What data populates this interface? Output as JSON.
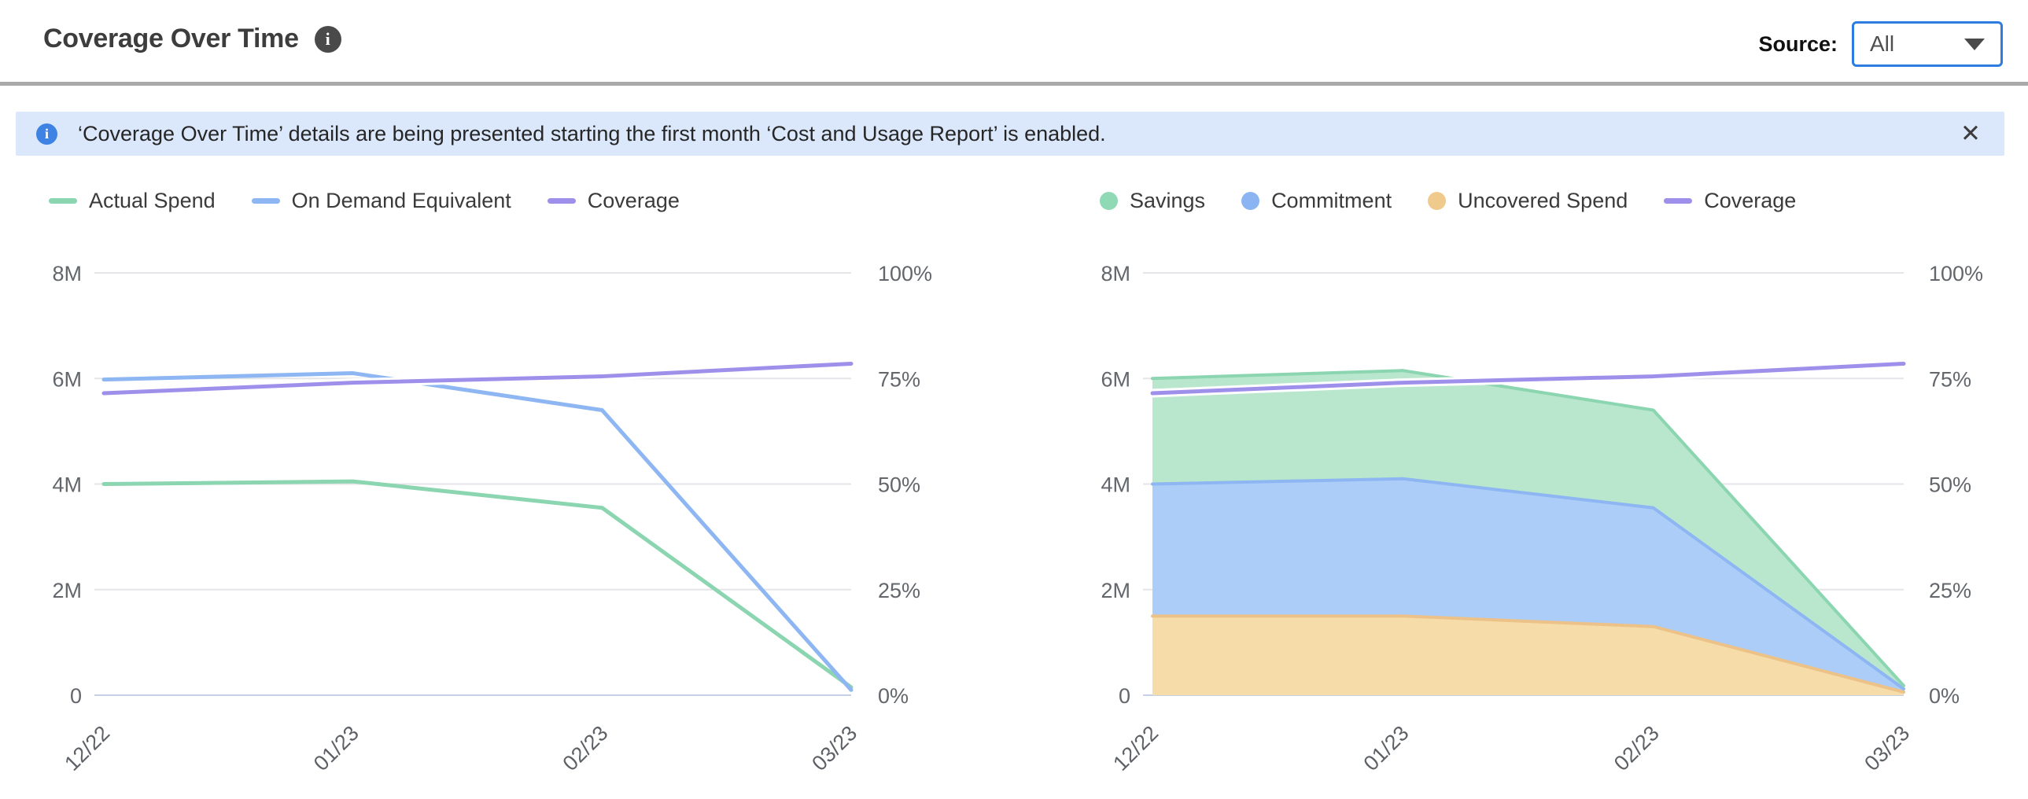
{
  "header": {
    "title": "Coverage Over Time",
    "info_icon": "i",
    "source_label": "Source:",
    "source_value": "All"
  },
  "banner": {
    "icon": "i",
    "text": "‘Coverage Over Time’ details are being presented starting the first month ‘Cost and Usage Report’ is enabled.",
    "close_glyph": "✕"
  },
  "colors": {
    "green_line": "#8bd5b0",
    "green_fill": "#b9e7cd",
    "blue_line": "#8db6f2",
    "blue_fill": "#abcdf8",
    "orange_line": "#edc289",
    "orange_fill": "#f5dca9",
    "purple_line": "#9e90ea",
    "halo": "#ffffff",
    "grid": "#e4e5e8",
    "zero_line": "#c5d0e9",
    "axis_text": "#63666b",
    "month_text": "#5d6065"
  },
  "chart_data": [
    {
      "type": "line",
      "categories": [
        "12/22",
        "01/23",
        "02/23",
        "03/23"
      ],
      "ylim": [
        0,
        8
      ],
      "y2lim": [
        0,
        100
      ],
      "yticks": [
        {
          "value": 8,
          "label": "8M"
        },
        {
          "value": 6,
          "label": "6M"
        },
        {
          "value": 4,
          "label": "4M"
        },
        {
          "value": 2,
          "label": "2M"
        },
        {
          "value": 0,
          "label": "0"
        }
      ],
      "y2ticks": [
        {
          "value": 100,
          "label": "100%"
        },
        {
          "value": 75,
          "label": "75%"
        },
        {
          "value": 50,
          "label": "50%"
        },
        {
          "value": 25,
          "label": "25%"
        },
        {
          "value": 0,
          "label": "0%"
        }
      ],
      "series": [
        {
          "name": "Actual Spend",
          "axis": "left",
          "color": "#8bd5b0",
          "values": [
            4.0,
            4.05,
            3.55,
            0.15
          ]
        },
        {
          "name": "On Demand Equivalent",
          "axis": "left",
          "color": "#8db6f2",
          "values": [
            5.98,
            6.1,
            5.4,
            0.1
          ]
        },
        {
          "name": "Coverage",
          "axis": "right",
          "color": "#9e90ea",
          "halo": true,
          "values": [
            71.5,
            74,
            75.5,
            78.5
          ]
        }
      ],
      "legend": [
        {
          "label": "Actual Spend",
          "marker": "dash",
          "color": "#8bd5b0"
        },
        {
          "label": "On Demand Equivalent",
          "marker": "dash",
          "color": "#8db6f2"
        },
        {
          "label": "Coverage",
          "marker": "dash",
          "color": "#9e90ea"
        }
      ],
      "legend_position": "top-left",
      "grid": true
    },
    {
      "type": "area",
      "categories": [
        "12/22",
        "01/23",
        "02/23",
        "03/23"
      ],
      "ylim": [
        0,
        8
      ],
      "y2lim": [
        0,
        100
      ],
      "yticks": [
        {
          "value": 8,
          "label": "8M"
        },
        {
          "value": 6,
          "label": "6M"
        },
        {
          "value": 4,
          "label": "4M"
        },
        {
          "value": 2,
          "label": "2M"
        },
        {
          "value": 0,
          "label": "0"
        }
      ],
      "y2ticks": [
        {
          "value": 100,
          "label": "100%"
        },
        {
          "value": 75,
          "label": "75%"
        },
        {
          "value": 50,
          "label": "50%"
        },
        {
          "value": 25,
          "label": "25%"
        },
        {
          "value": 0,
          "label": "0%"
        }
      ],
      "stacked_series": [
        {
          "name": "Uncovered Spend",
          "fill": "#f5dca9",
          "line": "#edc289",
          "values": [
            1.5,
            1.5,
            1.3,
            0.06
          ]
        },
        {
          "name": "Commitment",
          "fill": "#abcdf8",
          "line": "#8db6f2",
          "values": [
            2.5,
            2.6,
            2.25,
            0.06
          ]
        },
        {
          "name": "Savings",
          "fill": "#b9e7cd",
          "line": "#8bd5b0",
          "values": [
            2.0,
            2.05,
            1.85,
            0.06
          ]
        }
      ],
      "line_series": [
        {
          "name": "Coverage",
          "axis": "right",
          "color": "#9e90ea",
          "halo": true,
          "values": [
            71.5,
            74,
            75.5,
            78.5
          ]
        }
      ],
      "legend": [
        {
          "label": "Savings",
          "marker": "circle",
          "color": "#8fd9b4"
        },
        {
          "label": "Commitment",
          "marker": "circle",
          "color": "#8ab4f2"
        },
        {
          "label": "Uncovered Spend",
          "marker": "circle",
          "color": "#f0c98c"
        },
        {
          "label": "Coverage",
          "marker": "dash",
          "color": "#9e90ea"
        }
      ],
      "legend_position": "top-left",
      "grid": true
    }
  ]
}
